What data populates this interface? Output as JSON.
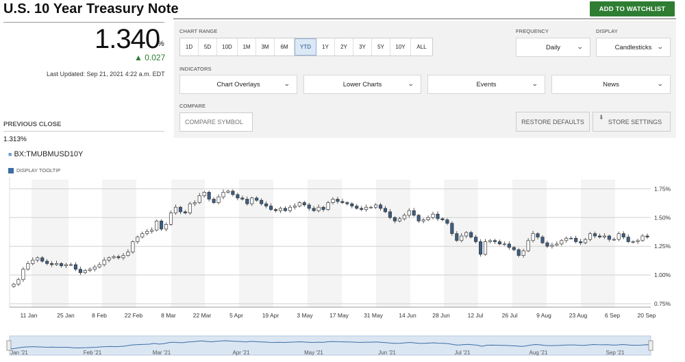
{
  "header": {
    "title": "U.S. 10 Year Treasury Note",
    "watchlist_label": "ADD TO WATCHLIST"
  },
  "quote": {
    "price": "1.340",
    "unit": "%",
    "change": "▲ 0.027",
    "updated": "Last Updated: Sep 21, 2021 4:22 a.m. EDT",
    "prev_close_label": "PREVIOUS CLOSE",
    "prev_close_value": "1.313%"
  },
  "symbol": "BX:TMUBMUSD10Y",
  "tooltip_label": "DISPLAY TOOLTIP",
  "controls": {
    "chart_range_label": "CHART RANGE",
    "ranges": [
      "1D",
      "5D",
      "10D",
      "1M",
      "3M",
      "6M",
      "YTD",
      "1Y",
      "2Y",
      "3Y",
      "5Y",
      "10Y",
      "ALL"
    ],
    "active_range": "YTD",
    "frequency_label": "FREQUENCY",
    "frequency_value": "Daily",
    "display_label": "DISPLAY",
    "display_value": "Candlesticks",
    "indicators_label": "INDICATORS",
    "indicators": [
      "Chart Overlays",
      "Lower Charts",
      "Events",
      "News"
    ],
    "compare_label": "COMPARE",
    "compare_placeholder": "COMPARE SYMBOL",
    "restore_label": "RESTORE DEFAULTS",
    "store_label": "STORE SETTINGS"
  },
  "colors": {
    "up_candle_fill": "#ffffff",
    "down_candle_fill": "#3b5f86",
    "candle_outline": "#333333",
    "accent_green": "#2e7d32",
    "navigator_fill": "#dbe6f3",
    "navigator_line": "#3a6ea5"
  },
  "chart_data": {
    "type": "candlestick",
    "y_ticks": [
      "0.75%",
      "1.00%",
      "1.25%",
      "1.50%",
      "1.75%"
    ],
    "y_tick_values": [
      0.75,
      1.0,
      1.25,
      1.5,
      1.75
    ],
    "ylim": [
      0.72,
      1.83
    ],
    "x_ticks": [
      "11 Jan",
      "25 Jan",
      "8 Feb",
      "22 Feb",
      "8 Mar",
      "22 Mar",
      "5 Apr",
      "19 Apr",
      "3 May",
      "17 May",
      "31 May",
      "14 Jun",
      "28 Jun",
      "12 Jul",
      "26 Jul",
      "9 Aug",
      "23 Aug",
      "6 Sep",
      "20 Sep"
    ],
    "navigator_labels": [
      "Jan '21",
      "Feb '21",
      "Mar '21",
      "Apr '21",
      "May '21",
      "Jun '21",
      "Jul '21",
      "Aug '21",
      "Sep '21"
    ],
    "close": [
      0.92,
      0.96,
      1.05,
      1.1,
      1.13,
      1.15,
      1.12,
      1.1,
      1.09,
      1.1,
      1.08,
      1.09,
      1.09,
      1.05,
      1.02,
      1.04,
      1.05,
      1.07,
      1.09,
      1.13,
      1.15,
      1.16,
      1.15,
      1.17,
      1.2,
      1.29,
      1.33,
      1.36,
      1.38,
      1.39,
      1.47,
      1.4,
      1.44,
      1.54,
      1.59,
      1.55,
      1.54,
      1.62,
      1.63,
      1.69,
      1.72,
      1.66,
      1.63,
      1.68,
      1.72,
      1.73,
      1.7,
      1.67,
      1.66,
      1.62,
      1.67,
      1.65,
      1.62,
      1.6,
      1.57,
      1.56,
      1.58,
      1.56,
      1.59,
      1.6,
      1.63,
      1.61,
      1.58,
      1.56,
      1.59,
      1.57,
      1.63,
      1.66,
      1.64,
      1.63,
      1.62,
      1.6,
      1.58,
      1.57,
      1.59,
      1.59,
      1.61,
      1.58,
      1.55,
      1.5,
      1.47,
      1.49,
      1.52,
      1.56,
      1.52,
      1.47,
      1.48,
      1.5,
      1.53,
      1.49,
      1.48,
      1.45,
      1.36,
      1.3,
      1.34,
      1.37,
      1.33,
      1.29,
      1.18,
      1.29,
      1.3,
      1.29,
      1.27,
      1.27,
      1.24,
      1.22,
      1.17,
      1.21,
      1.3,
      1.36,
      1.33,
      1.28,
      1.25,
      1.26,
      1.27,
      1.3,
      1.32,
      1.32,
      1.29,
      1.28,
      1.31,
      1.36,
      1.34,
      1.33,
      1.34,
      1.31,
      1.31,
      1.36,
      1.33,
      1.29,
      1.29,
      1.3,
      1.34,
      1.33
    ]
  }
}
